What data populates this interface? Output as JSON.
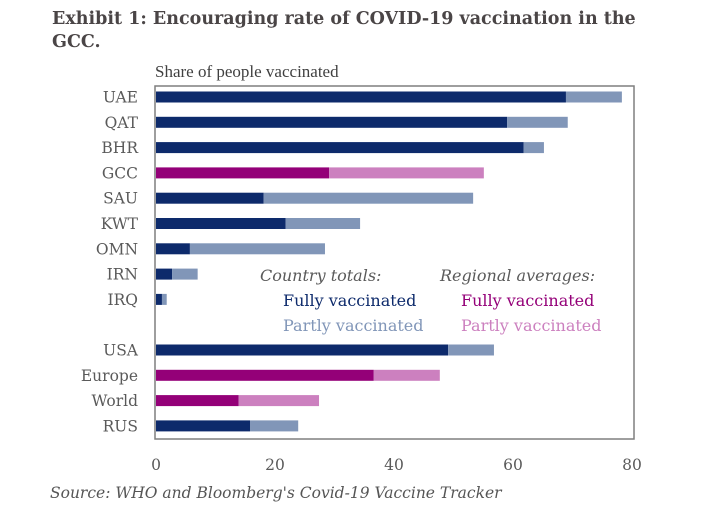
{
  "chart_data": {
    "type": "bar",
    "orientation": "horizontal",
    "stacked": true,
    "title": "Exhibit 1: Encouraging rate of COVID-19 vaccination in the GCC.",
    "subtitle": "Share of people vaccinated",
    "xlabel": "",
    "ylabel": "",
    "xlim": [
      0,
      80
    ],
    "xticks": [
      0,
      20,
      40,
      60,
      80
    ],
    "grid": false,
    "source": "Source: WHO and Bloomberg's Covid-19 Vaccine Tracker",
    "categories": [
      "UAE",
      "QAT",
      "BHR",
      "GCC",
      "SAU",
      "KWT",
      "OMN",
      "IRN",
      "IRQ",
      "",
      "USA",
      "Europe",
      "World",
      "RUS"
    ],
    "group": [
      "country",
      "country",
      "country",
      "regional",
      "country",
      "country",
      "country",
      "country",
      "country",
      "gap",
      "country",
      "regional",
      "regional",
      "country"
    ],
    "series": [
      {
        "name": "Fully vaccinated",
        "values": [
          68.9,
          59.0,
          61.8,
          29.1,
          18.1,
          21.8,
          5.7,
          2.7,
          1.0,
          null,
          49.1,
          36.6,
          13.9,
          15.8
        ]
      },
      {
        "name": "Partly vaccinated",
        "values": [
          9.4,
          10.2,
          3.4,
          26.0,
          35.2,
          12.5,
          22.7,
          4.3,
          0.8,
          null,
          7.7,
          11.1,
          13.5,
          8.1
        ]
      }
    ],
    "totals": [
      78.3,
      69.2,
      65.2,
      55.1,
      53.3,
      34.3,
      28.4,
      7.0,
      1.8,
      null,
      56.8,
      47.7,
      27.4,
      23.9
    ],
    "colors": {
      "country_fully": "#0d2a6b",
      "country_partly": "#8196b8",
      "regional_fully": "#940078",
      "regional_partly": "#cc80bf"
    },
    "legend": {
      "placement": "center-right",
      "groups": [
        {
          "heading": "Country totals:",
          "items": [
            {
              "label": "Fully vaccinated",
              "color": "#0d2a6b"
            },
            {
              "label": "Partly vaccinated",
              "color": "#8196b8"
            }
          ]
        },
        {
          "heading": "Regional averages:",
          "items": [
            {
              "label": "Fully vaccinated",
              "color": "#940078"
            },
            {
              "label": "Partly vaccinated",
              "color": "#cc80bf"
            }
          ]
        }
      ]
    }
  }
}
